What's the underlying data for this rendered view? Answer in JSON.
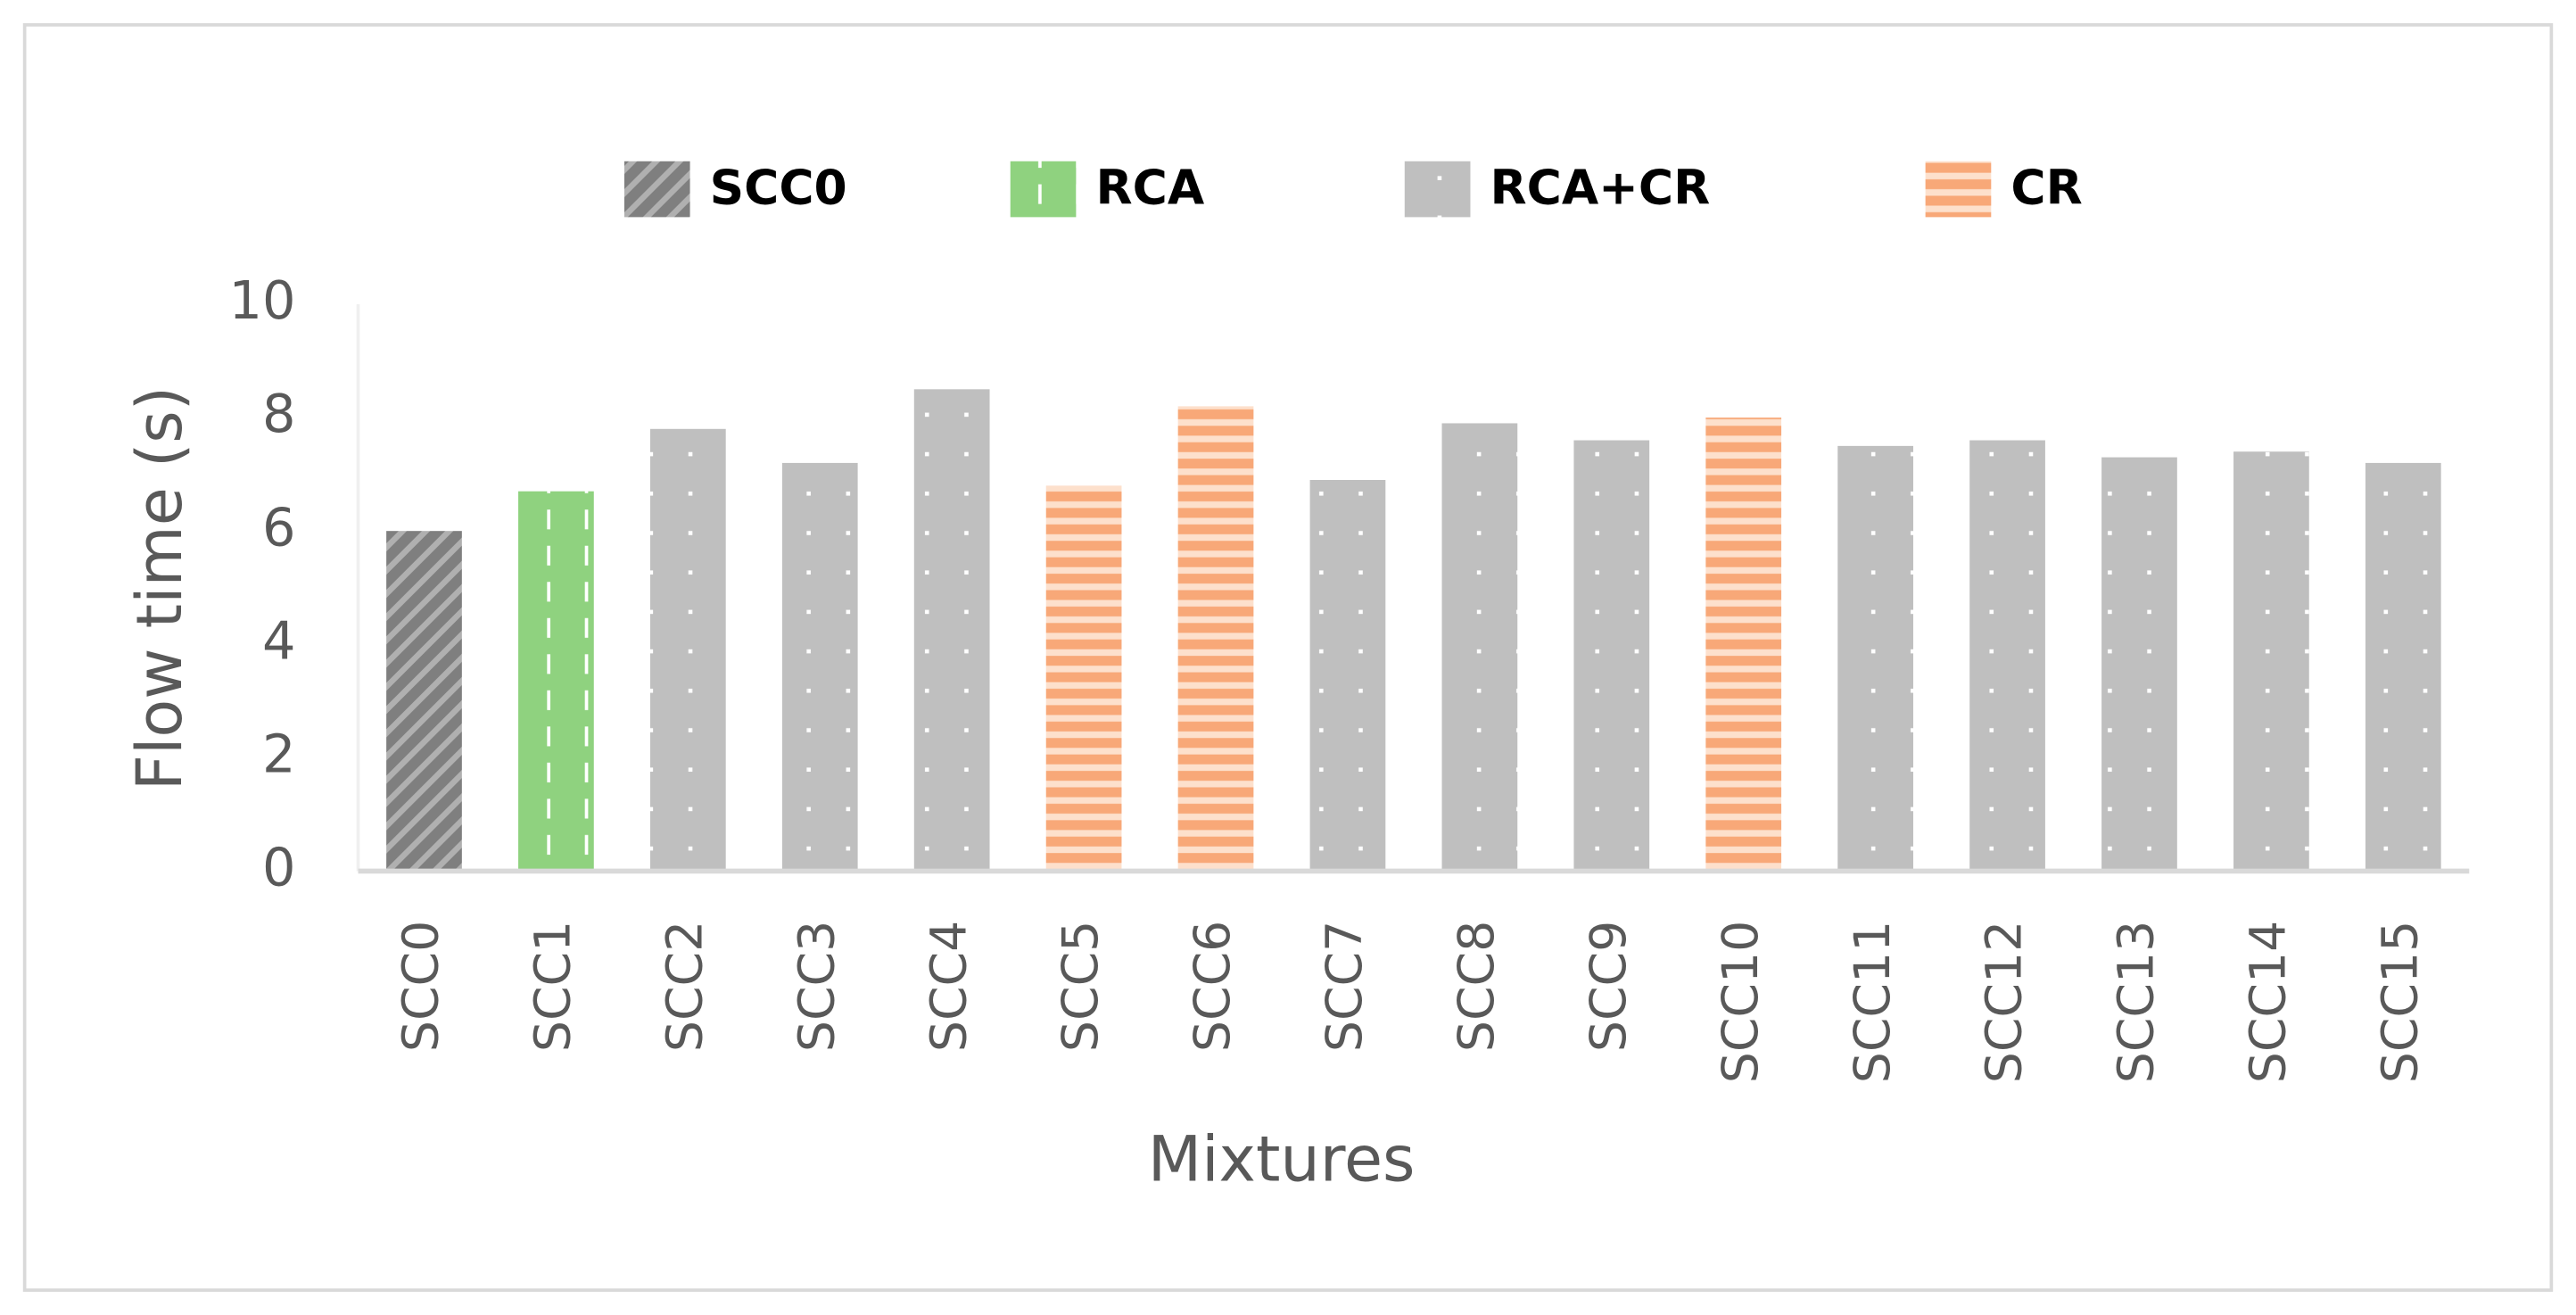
{
  "chart_data": {
    "type": "bar",
    "x_label": "Mixtures",
    "y_label": "Flow time (s)",
    "categories": [
      "SCC0",
      "SCC1",
      "SCC2",
      "SCC3",
      "SCC4",
      "SCC5",
      "SCC6",
      "SCC7",
      "SCC8",
      "SCC9",
      "SCC10",
      "SCC11",
      "SCC12",
      "SCC13",
      "SCC14",
      "SCC15"
    ],
    "series": [
      {
        "name": "SCC0",
        "color": "#7f7f7f",
        "pattern": "diagonal",
        "values": [
          6.0,
          null,
          null,
          null,
          null,
          null,
          null,
          null,
          null,
          null,
          null,
          null,
          null,
          null,
          null,
          null
        ]
      },
      {
        "name": "RCA",
        "color": "#8fd27f",
        "pattern": "dashed-vertical",
        "values": [
          null,
          6.7,
          null,
          null,
          null,
          null,
          null,
          null,
          null,
          null,
          null,
          null,
          null,
          null,
          null,
          null
        ]
      },
      {
        "name": "RCA+CR",
        "color": "#bfbfbf",
        "pattern": "dots",
        "values": [
          null,
          null,
          7.8,
          7.2,
          8.5,
          null,
          null,
          6.9,
          7.9,
          7.6,
          null,
          7.5,
          7.6,
          7.3,
          7.4,
          7.2
        ]
      },
      {
        "name": "CR",
        "color": "#f8a878",
        "pattern": "horizontal",
        "values": [
          null,
          null,
          null,
          null,
          null,
          6.8,
          8.2,
          null,
          null,
          null,
          8.0,
          null,
          null,
          null,
          null,
          null
        ]
      }
    ],
    "ylim": [
      0,
      10
    ],
    "yticks": [
      0,
      2,
      4,
      6,
      8,
      10
    ],
    "grid": false,
    "legend": "top"
  }
}
